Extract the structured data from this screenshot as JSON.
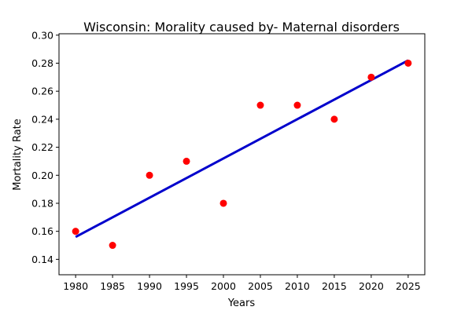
{
  "chart_data": {
    "type": "scatter",
    "title": "Wisconsin: Morality caused by- Maternal disorders",
    "xlabel": "Years",
    "ylabel": "Mortality Rate",
    "x": [
      1980,
      1985,
      1990,
      1995,
      2000,
      2005,
      2010,
      2015,
      2020,
      2025
    ],
    "y": [
      0.16,
      0.15,
      0.2,
      0.21,
      0.18,
      0.25,
      0.25,
      0.24,
      0.27,
      0.28
    ],
    "trend_line": {
      "x": [
        1980,
        2025
      ],
      "y": [
        0.156,
        0.282
      ]
    },
    "xlim": [
      1977.75,
      2027.25
    ],
    "ylim": [
      0.129,
      0.301
    ],
    "x_ticks": [
      1980,
      1985,
      1990,
      1995,
      2000,
      2005,
      2010,
      2015,
      2020,
      2025
    ],
    "y_ticks": [
      0.14,
      0.16,
      0.18,
      0.2,
      0.22,
      0.24,
      0.26,
      0.28,
      0.3
    ],
    "x_tick_labels": [
      "1980",
      "1985",
      "1990",
      "1995",
      "2000",
      "2005",
      "2010",
      "2015",
      "2020",
      "2025"
    ],
    "y_tick_labels": [
      "0.14",
      "0.16",
      "0.18",
      "0.20",
      "0.22",
      "0.24",
      "0.26",
      "0.28",
      "0.30"
    ],
    "point_color": "#ff0000",
    "line_color": "#0000cc",
    "grid": false
  }
}
